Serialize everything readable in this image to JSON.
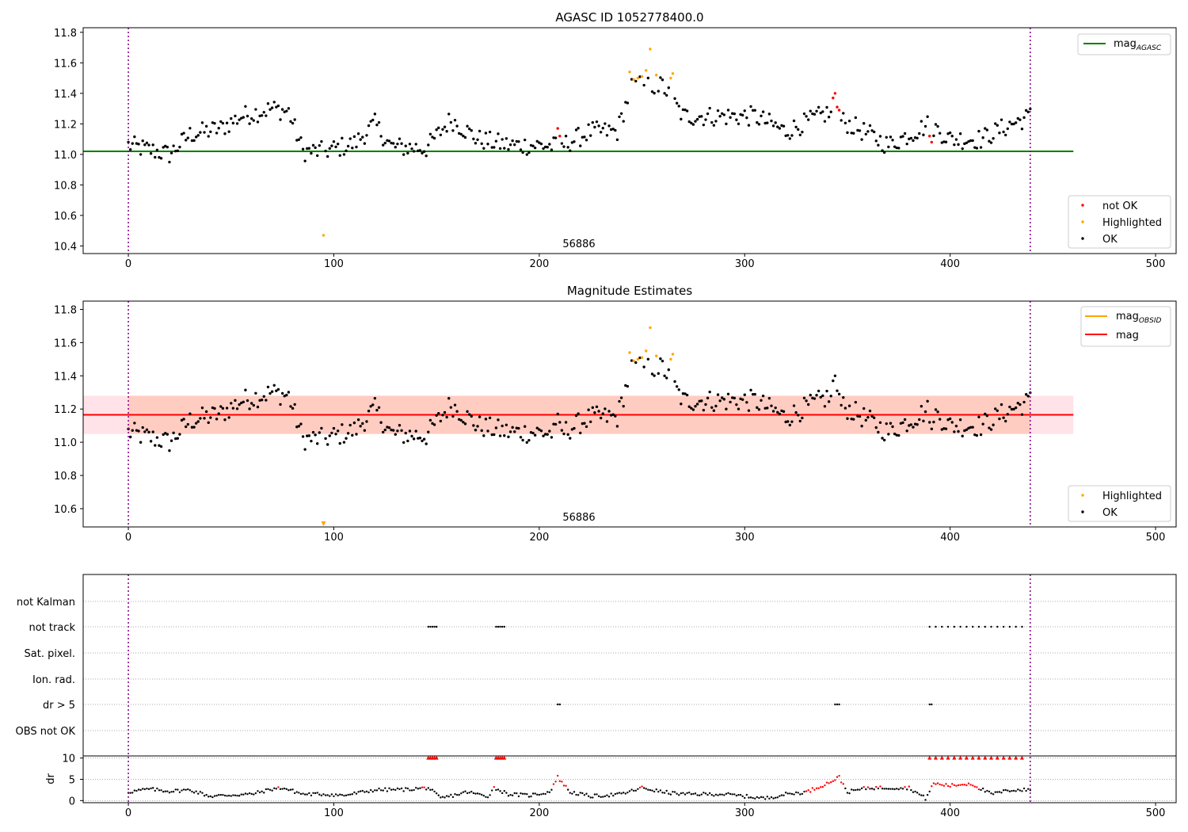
{
  "figure": {
    "top_title": "AGASC ID 1052778400.0",
    "mid_title": "Magnitude Estimates",
    "obsid_text": "56886"
  },
  "chart_data": [
    {
      "type": "scatter",
      "title": "AGASC ID 1052778400.0",
      "xlim": [
        -22,
        510
      ],
      "ylim": [
        10.35,
        11.83
      ],
      "xticks": [
        0,
        100,
        200,
        300,
        400,
        500
      ],
      "yticks": [
        10.4,
        10.6,
        10.8,
        11.0,
        11.2,
        11.4,
        11.6,
        11.8
      ],
      "ytick_labels": [
        "10.4",
        "10.6",
        "10.8",
        "11.0",
        "11.2",
        "11.4",
        "11.6",
        "11.8"
      ],
      "vertical_lines_x": [
        0,
        439
      ],
      "annotation": "56886",
      "mag_agasc": 11.02,
      "line_legend": [
        {
          "name": "mag",
          "subscript": "AGASC",
          "color": "#008000"
        }
      ],
      "point_legend": [
        {
          "name": "not OK",
          "color": "#ff0000"
        },
        {
          "name": "Highlighted",
          "color": "#ffa500"
        },
        {
          "name": "OK",
          "color": "#000000"
        }
      ],
      "series_note": "OK points follow ok_curve (x in 0..439); highlighted and not-OK points listed",
      "ok_curve": [
        [
          0,
          11.06
        ],
        [
          20,
          11.0
        ],
        [
          30,
          11.13
        ],
        [
          45,
          11.17
        ],
        [
          55,
          11.25
        ],
        [
          70,
          11.3
        ],
        [
          78,
          11.28
        ],
        [
          85,
          11.02
        ],
        [
          95,
          11.02
        ],
        [
          110,
          11.07
        ],
        [
          120,
          11.2
        ],
        [
          128,
          11.05
        ],
        [
          145,
          11.04
        ],
        [
          157,
          11.23
        ],
        [
          170,
          11.1
        ],
        [
          185,
          11.06
        ],
        [
          200,
          11.06
        ],
        [
          210,
          11.05
        ],
        [
          225,
          11.15
        ],
        [
          238,
          11.15
        ],
        [
          245,
          11.45
        ],
        [
          260,
          11.45
        ],
        [
          270,
          11.25
        ],
        [
          290,
          11.25
        ],
        [
          305,
          11.25
        ],
        [
          320,
          11.15
        ],
        [
          340,
          11.27
        ],
        [
          355,
          11.17
        ],
        [
          370,
          11.06
        ],
        [
          390,
          11.2
        ],
        [
          400,
          11.1
        ],
        [
          415,
          11.1
        ],
        [
          430,
          11.2
        ],
        [
          439,
          11.25
        ]
      ],
      "highlighted_points": [
        [
          95,
          10.47
        ],
        [
          244,
          11.54
        ],
        [
          246,
          11.49
        ],
        [
          248,
          11.5
        ],
        [
          250,
          11.51
        ],
        [
          252,
          11.55
        ],
        [
          254,
          11.69
        ],
        [
          257,
          11.52
        ],
        [
          264,
          11.5
        ],
        [
          265,
          11.53
        ]
      ],
      "not_ok_points": [
        [
          209,
          11.17
        ],
        [
          210,
          11.12
        ],
        [
          343,
          11.37
        ],
        [
          344,
          11.4
        ],
        [
          345,
          11.31
        ],
        [
          346,
          11.29
        ],
        [
          390,
          11.12
        ],
        [
          391,
          11.08
        ]
      ]
    },
    {
      "type": "scatter",
      "title": "Magnitude Estimates",
      "xlim": [
        -22,
        510
      ],
      "ylim": [
        10.49,
        11.85
      ],
      "xticks": [
        0,
        100,
        200,
        300,
        400,
        500
      ],
      "yticks": [
        10.6,
        10.8,
        11.0,
        11.2,
        11.4,
        11.6,
        11.8
      ],
      "ytick_labels": [
        "10.6",
        "10.8",
        "11.0",
        "11.2",
        "11.4",
        "11.6",
        "11.8"
      ],
      "vertical_lines_x": [
        0,
        439
      ],
      "annotation": "56886",
      "mag": 11.165,
      "mag_band": [
        11.05,
        11.28
      ],
      "mag_obsid": 11.165,
      "mag_obsid_band": [
        11.05,
        11.28
      ],
      "band_x_range": [
        0,
        439
      ],
      "wide_band_x_range": [
        -22,
        460
      ],
      "line_legend": [
        {
          "name": "mag",
          "subscript": "OBSID",
          "color": "#ffa500"
        },
        {
          "name": "mag",
          "subscript": "",
          "color": "#ff0000"
        }
      ],
      "point_legend": [
        {
          "name": "Highlighted",
          "color": "#ffa500"
        },
        {
          "name": "OK",
          "color": "#000000"
        }
      ],
      "highlighted_points": [
        [
          244,
          11.54
        ],
        [
          246,
          11.49
        ],
        [
          248,
          11.5
        ],
        [
          250,
          11.51
        ],
        [
          252,
          11.55
        ],
        [
          254,
          11.69
        ],
        [
          257,
          11.52
        ],
        [
          264,
          11.5
        ],
        [
          265,
          11.53
        ]
      ],
      "out_of_range_marker": {
        "x": 95,
        "y": 10.5
      }
    },
    {
      "type": "scatter",
      "categories": [
        "not Kalman",
        "not track",
        "Sat. pixel.",
        "Ion. rad.",
        "dr > 5",
        "OBS not OK"
      ],
      "flag_points": {
        "not Kalman": [],
        "not track": [
          [
            146,
            150
          ],
          [
            179,
            183
          ],
          [
            390,
            437
          ]
        ],
        "Sat. pixel.": [],
        "Ion. rad.": [],
        "dr > 5": [
          [
            209,
            210
          ],
          [
            344,
            346
          ],
          [
            390,
            391
          ]
        ],
        "OBS not OK": []
      },
      "xlim": [
        -22,
        510
      ],
      "xticks": [
        0,
        100,
        200,
        300,
        400,
        500
      ]
    },
    {
      "type": "scatter",
      "ylabel": "dr",
      "ylim": [
        -0.5,
        10.5
      ],
      "yticks": [
        0,
        5,
        10
      ],
      "xlim": [
        -22,
        510
      ],
      "xticks": [
        0,
        100,
        200,
        300,
        400,
        500
      ],
      "dr_curve": [
        [
          0,
          2.0
        ],
        [
          10,
          2.7
        ],
        [
          20,
          2.2
        ],
        [
          30,
          2.5
        ],
        [
          40,
          1.0
        ],
        [
          50,
          1.3
        ],
        [
          60,
          1.5
        ],
        [
          70,
          2.7
        ],
        [
          75,
          3.0
        ],
        [
          85,
          1.5
        ],
        [
          95,
          1.5
        ],
        [
          105,
          1.2
        ],
        [
          120,
          2.5
        ],
        [
          135,
          2.6
        ],
        [
          146,
          3.0
        ],
        [
          152,
          0.5
        ],
        [
          165,
          2.0
        ],
        [
          175,
          1.0
        ],
        [
          178,
          3.0
        ],
        [
          185,
          1.5
        ],
        [
          195,
          1.2
        ],
        [
          205,
          2.0
        ],
        [
          209,
          5.5
        ],
        [
          215,
          2.0
        ],
        [
          225,
          1.0
        ],
        [
          240,
          1.5
        ],
        [
          250,
          3.0
        ],
        [
          260,
          2.0
        ],
        [
          270,
          1.5
        ],
        [
          290,
          1.5
        ],
        [
          300,
          1.0
        ],
        [
          310,
          0.5
        ],
        [
          320,
          1.5
        ],
        [
          330,
          2.0
        ],
        [
          340,
          4.0
        ],
        [
          346,
          5.5
        ],
        [
          350,
          2.0
        ],
        [
          360,
          3.0
        ],
        [
          370,
          3.0
        ],
        [
          380,
          3.0
        ],
        [
          388,
          0.5
        ],
        [
          392,
          4.0
        ],
        [
          400,
          3.5
        ],
        [
          410,
          4.0
        ],
        [
          420,
          1.5
        ],
        [
          430,
          2.5
        ],
        [
          439,
          2.5
        ]
      ],
      "red_markers_at_10_ranges": [
        [
          146,
          150
        ],
        [
          179,
          183
        ],
        [
          390,
          437
        ]
      ]
    }
  ]
}
